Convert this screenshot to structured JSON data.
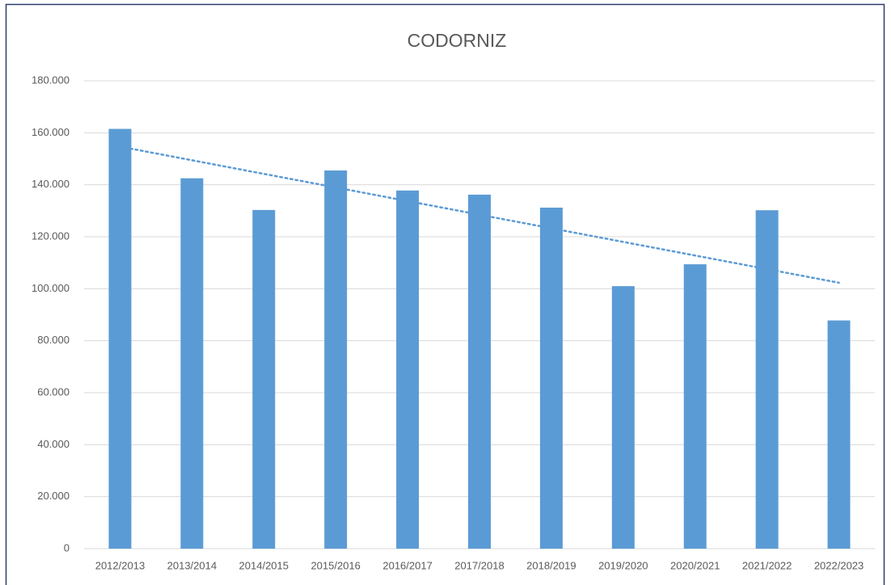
{
  "chart_data": {
    "type": "bar",
    "title": "CODORNIZ",
    "categories": [
      "2012/2013",
      "2013/2014",
      "2014/2015",
      "2015/2016",
      "2016/2017",
      "2017/2018",
      "2018/2019",
      "2019/2020",
      "2020/2021",
      "2021/2022",
      "2022/2023"
    ],
    "values": [
      161500,
      142500,
      130300,
      145500,
      137800,
      136200,
      131200,
      101000,
      109400,
      130200,
      87800
    ],
    "color": "#5b9bd5",
    "ylim": [
      0,
      180000
    ],
    "yticks": [
      0,
      {
        "value": 20000,
        "label": "20.000"
      },
      {
        "value": 40000,
        "label": "40.000"
      },
      {
        "value": 60000,
        "label": "60.000"
      },
      {
        "value": 80000,
        "label": "80.000"
      },
      {
        "value": 100000,
        "label": "100.000"
      },
      {
        "value": 120000,
        "label": "120.000"
      },
      {
        "value": 140000,
        "label": "140.000"
      },
      {
        "value": 160000,
        "label": "160.000"
      },
      {
        "value": 180000,
        "label": "180.000"
      }
    ],
    "grid": true,
    "trendline": "linear"
  }
}
